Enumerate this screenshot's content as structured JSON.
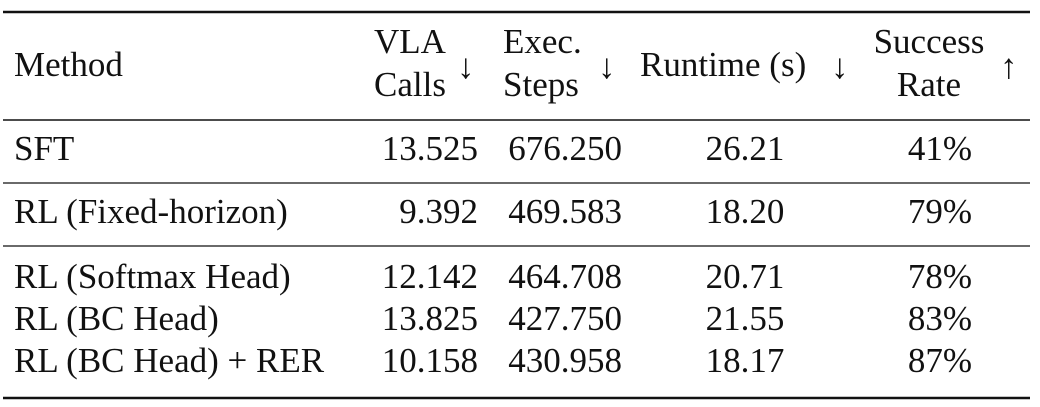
{
  "table": {
    "header": [
      {
        "lines": [
          "Method"
        ]
      },
      {
        "lines": [
          "VLA",
          "Calls"
        ],
        "arrow": "↓"
      },
      {
        "lines": [
          "Exec.",
          "Steps"
        ],
        "arrow": "↓"
      },
      {
        "lines": [
          "Runtime (s)"
        ],
        "arrow": "↓"
      },
      {
        "lines": [
          "Success",
          "Rate"
        ],
        "arrow": "↑"
      }
    ],
    "rows": [
      [
        "SFT",
        "13.525",
        "676.250",
        "26.21",
        "41%"
      ],
      [
        "RL (Fixed-horizon)",
        "9.392",
        "469.583",
        "18.20",
        "79%"
      ],
      [
        "RL (Softmax Head)",
        "12.142",
        "464.708",
        "20.71",
        "78%"
      ],
      [
        "RL (BC Head)",
        "13.825",
        "427.750",
        "21.55",
        "83%"
      ],
      [
        "RL (BC Head) + RER",
        "10.158",
        "430.958",
        "18.17",
        "87%"
      ]
    ]
  }
}
